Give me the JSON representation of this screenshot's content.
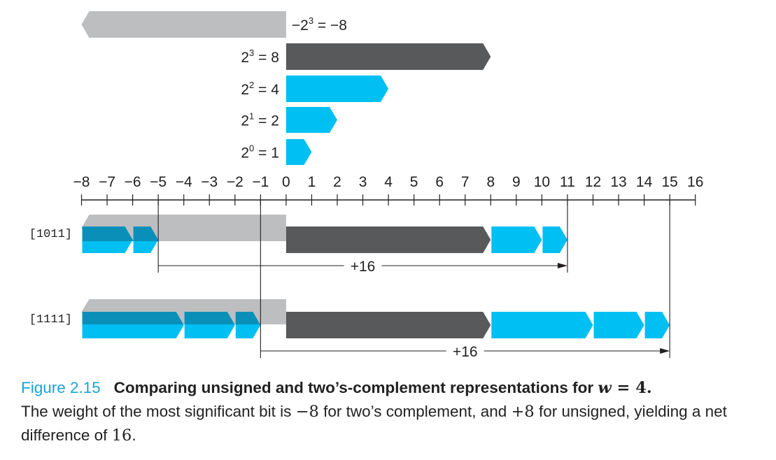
{
  "colors": {
    "cyan": "#00bff3",
    "cyan_dark": "#0a90b8",
    "dark_gray": "#58595b",
    "light_gray": "#bcbec0",
    "blue_text": "#1aa3d9",
    "line": "#231f20"
  },
  "weights": [
    {
      "base": "−2",
      "exp": "3",
      "value_text": "= −8",
      "value": -8,
      "color": "light_gray"
    },
    {
      "base": "2",
      "exp": "3",
      "value_text": "= 8",
      "value": 8,
      "color": "dark_gray"
    },
    {
      "base": "2",
      "exp": "2",
      "value_text": "= 4",
      "value": 4,
      "color": "cyan"
    },
    {
      "base": "2",
      "exp": "1",
      "value_text": "= 2",
      "value": 2,
      "color": "cyan"
    },
    {
      "base": "2",
      "exp": "0",
      "value_text": "= 1",
      "value": 1,
      "color": "cyan"
    }
  ],
  "axis": {
    "min": -8,
    "max": 16,
    "tick_labels": [
      "−8",
      "−7",
      "−6",
      "−5",
      "−4",
      "−3",
      "−2",
      "−1",
      "0",
      "1",
      "2",
      "3",
      "4",
      "5",
      "6",
      "7",
      "8",
      "9",
      "10",
      "11",
      "12",
      "13",
      "14",
      "15",
      "16"
    ]
  },
  "rows": [
    {
      "label": "[1011]",
      "twos_value": -5,
      "unsigned_value": 11,
      "gray_segment": [
        -8,
        0
      ],
      "dark_segment": [
        0,
        8
      ],
      "cyan_negative": [
        [
          -8,
          -6
        ],
        [
          -6,
          -5
        ]
      ],
      "cyan_positive": [
        [
          8,
          10
        ],
        [
          10,
          11
        ]
      ],
      "diff_label": "+16"
    },
    {
      "label": "[1111]",
      "twos_value": -1,
      "unsigned_value": 15,
      "gray_segment": [
        -8,
        0
      ],
      "dark_segment": [
        0,
        8
      ],
      "cyan_negative": [
        [
          -8,
          -4
        ],
        [
          -4,
          -2
        ],
        [
          -2,
          -1
        ]
      ],
      "cyan_positive": [
        [
          8,
          12
        ],
        [
          12,
          14
        ],
        [
          14,
          15
        ]
      ],
      "diff_label": "+16"
    }
  ],
  "caption": {
    "figure_number": "Figure 2.15",
    "title_text": "Comparing unsigned and two’s-complement representations for ",
    "title_var": "w",
    "title_eq": " = 4.",
    "body_1": "The weight of the most significant bit is ",
    "val_1": "−8",
    "body_2": " for two’s complement, and ",
    "val_2": "+8",
    "body_3": " for unsigned, yielding a net difference of ",
    "val_3": "16",
    "body_4": "."
  }
}
